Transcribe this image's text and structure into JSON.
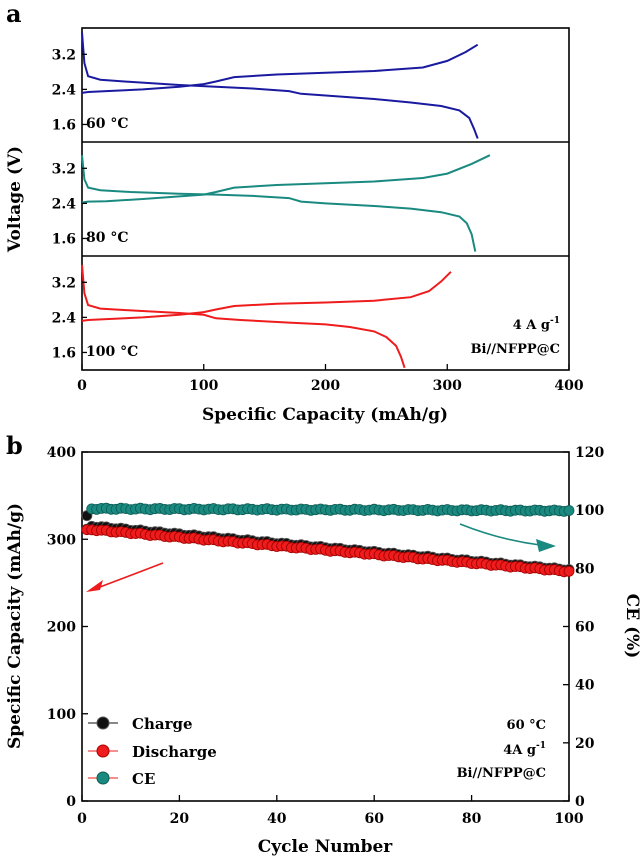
{
  "chart_data": [
    {
      "panel": "a",
      "type": "line",
      "title": "",
      "xlabel": "Specific Capacity (mAh/g)",
      "ylabel": "Voltage (V)",
      "xlim": [
        0,
        400
      ],
      "xticks": [
        "0",
        "100",
        "200",
        "300",
        "400"
      ],
      "ylim": [
        1.2,
        3.8
      ],
      "yticks": [
        "1.6",
        "2.4",
        "3.2"
      ],
      "annotation": [
        "4 A g",
        "-1",
        "Bi//NFPP@C"
      ],
      "subpanels": [
        {
          "label": "60 °C",
          "color": "#1a1aa0",
          "series": [
            {
              "name": "charge",
              "x": [
                0,
                5,
                20,
                50,
                80,
                100,
                110,
                125,
                160,
                200,
                240,
                280,
                300,
                315,
                325
              ],
              "y": [
                2.32,
                2.34,
                2.36,
                2.4,
                2.46,
                2.52,
                2.58,
                2.68,
                2.74,
                2.78,
                2.82,
                2.9,
                3.05,
                3.25,
                3.42
              ]
            },
            {
              "name": "discharge",
              "x": [
                0,
                2,
                5,
                15,
                40,
                80,
                110,
                140,
                170,
                180,
                200,
                240,
                270,
                295,
                310,
                318,
                322,
                325
              ],
              "y": [
                3.7,
                3.0,
                2.7,
                2.62,
                2.57,
                2.5,
                2.46,
                2.42,
                2.36,
                2.3,
                2.26,
                2.18,
                2.1,
                2.02,
                1.92,
                1.75,
                1.5,
                1.28
              ]
            }
          ]
        },
        {
          "label": "80 °C",
          "color": "#1a8a80",
          "series": [
            {
              "name": "charge",
              "x": [
                0,
                5,
                20,
                50,
                80,
                100,
                110,
                125,
                160,
                200,
                240,
                280,
                300,
                320,
                335
              ],
              "y": [
                2.42,
                2.44,
                2.45,
                2.5,
                2.56,
                2.6,
                2.66,
                2.76,
                2.82,
                2.86,
                2.9,
                2.98,
                3.08,
                3.3,
                3.5
              ]
            },
            {
              "name": "discharge",
              "x": [
                0,
                2,
                5,
                15,
                40,
                80,
                110,
                140,
                170,
                180,
                200,
                240,
                270,
                295,
                310,
                316,
                320,
                323
              ],
              "y": [
                3.5,
                2.95,
                2.76,
                2.7,
                2.66,
                2.62,
                2.6,
                2.57,
                2.52,
                2.44,
                2.4,
                2.34,
                2.28,
                2.2,
                2.1,
                1.95,
                1.7,
                1.3
              ]
            }
          ]
        },
        {
          "label": "100 °C",
          "color": "#ee1c1c",
          "series": [
            {
              "name": "charge",
              "x": [
                0,
                5,
                20,
                50,
                80,
                100,
                110,
                125,
                160,
                200,
                240,
                270,
                285,
                295,
                303
              ],
              "y": [
                2.32,
                2.34,
                2.36,
                2.4,
                2.46,
                2.52,
                2.58,
                2.66,
                2.71,
                2.74,
                2.78,
                2.86,
                3.0,
                3.22,
                3.44
              ]
            },
            {
              "name": "discharge",
              "x": [
                0,
                2,
                5,
                15,
                40,
                80,
                100,
                110,
                130,
                170,
                200,
                220,
                240,
                250,
                258,
                262,
                265
              ],
              "y": [
                3.6,
                2.95,
                2.68,
                2.6,
                2.56,
                2.5,
                2.46,
                2.38,
                2.34,
                2.28,
                2.24,
                2.18,
                2.08,
                1.95,
                1.75,
                1.5,
                1.25
              ]
            }
          ]
        }
      ]
    },
    {
      "panel": "b",
      "type": "scatter",
      "title": "",
      "xlabel": "Cycle Number",
      "ylabel": "Specific Capacity (mAh/g)",
      "y2label": "CE (%)",
      "xlim": [
        0,
        100
      ],
      "xticks": [
        "0",
        "20",
        "40",
        "60",
        "80",
        "100"
      ],
      "ylim": [
        0,
        400
      ],
      "yticks": [
        "0",
        "100",
        "200",
        "300",
        "400"
      ],
      "y2lim": [
        0,
        120
      ],
      "y2ticks": [
        "0",
        "20",
        "40",
        "60",
        "80",
        "100",
        "120"
      ],
      "legend": [
        "Charge",
        "Discharge",
        "CE"
      ],
      "legend_position": "bottom-left",
      "annotation": [
        "60 °C",
        "4A g",
        "-1",
        "Bi//NFPP@C"
      ],
      "series": [
        {
          "name": "Charge",
          "color": "#111111",
          "axis": "left",
          "first": [
            1,
            327
          ],
          "start": [
            2,
            315
          ],
          "end": [
            100,
            265
          ]
        },
        {
          "name": "Discharge",
          "color": "#ee1c1c",
          "axis": "left",
          "first": [
            1,
            311
          ],
          "start": [
            2,
            311
          ],
          "end": [
            100,
            263
          ]
        },
        {
          "name": "CE",
          "color": "#1a8a80",
          "axis": "right",
          "first": [
            1,
            93.5
          ],
          "start": [
            2,
            100.5
          ],
          "end": [
            100,
            99.8
          ]
        }
      ]
    }
  ]
}
